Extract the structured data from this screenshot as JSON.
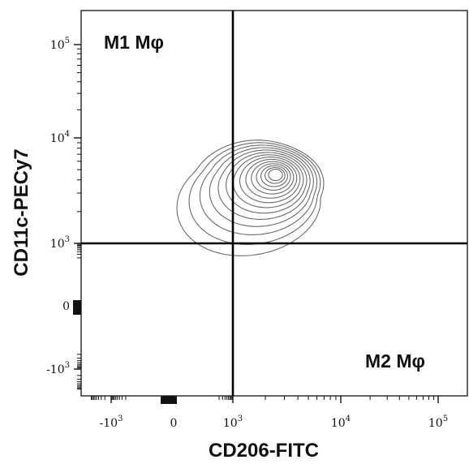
{
  "chart_data": {
    "type": "contour",
    "xlabel": "CD206-FITC",
    "ylabel": "CD11c-PECy7",
    "x_scale": "biexponential",
    "y_scale": "biexponential",
    "x_ticks": [
      {
        "value": -1000,
        "base": "-10",
        "exp": "3"
      },
      {
        "value": 0,
        "base": "0",
        "exp": ""
      },
      {
        "value": 1000,
        "base": "10",
        "exp": "3"
      },
      {
        "value": 10000,
        "base": "10",
        "exp": "4"
      },
      {
        "value": 100000,
        "base": "10",
        "exp": "5"
      }
    ],
    "y_ticks": [
      {
        "value": 100000,
        "base": "10",
        "exp": "5"
      },
      {
        "value": 10000,
        "base": "10",
        "exp": "4"
      },
      {
        "value": 1000,
        "base": "10",
        "exp": "3"
      },
      {
        "value": 0,
        "base": "0",
        "exp": ""
      },
      {
        "value": -1000,
        "base": "-10",
        "exp": "3"
      }
    ],
    "quadrant_gate": {
      "x": 1000,
      "y": 1000
    },
    "quadrant_labels": [
      {
        "text": "M1 Mφ",
        "quadrant": "top-left"
      },
      {
        "text": "M2 Mφ",
        "quadrant": "bottom-right"
      }
    ],
    "population": {
      "peak_x": 2500,
      "peak_y": 4500,
      "contour_levels": 14
    },
    "grid": false
  }
}
